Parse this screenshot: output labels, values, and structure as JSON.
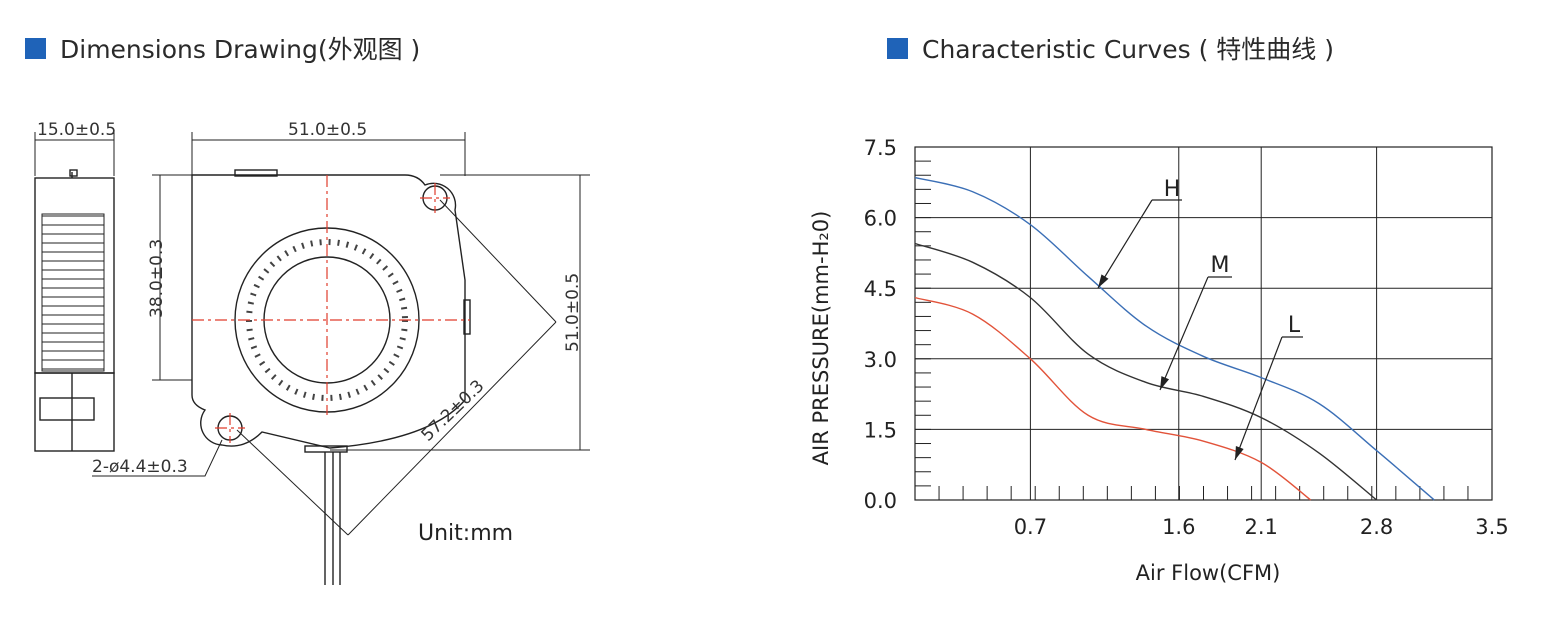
{
  "headers": {
    "left_title": "Dimensions Drawing(外观图 )",
    "right_title": "Characteristic Curves ( 特性曲线 )",
    "accent_color": "#1f63b8"
  },
  "drawing": {
    "dim_side_width": "15.0±0.5",
    "dim_top_width": "51.0±0.5",
    "dim_height": "38.0±0.3",
    "dim_right_height": "51.0±0.5",
    "dim_diagonal": "57.2±0.3",
    "dim_hole": "2-ø4.4±0.3",
    "unit_label": "Unit:mm",
    "centerline_color": "#e03c2c"
  },
  "chart_data": {
    "type": "line",
    "title": "",
    "xlabel": "Air Flow(CFM)",
    "ylabel": "AIR PRESSURE(mm-H₂0)",
    "x_ticks": [
      "0.7",
      "1.6",
      "2.1",
      "2.8",
      "3.5"
    ],
    "y_ticks": [
      "0.0",
      "1.5",
      "3.0",
      "4.5",
      "6.0",
      "7.5"
    ],
    "xlim": [
      0,
      3.5
    ],
    "ylim": [
      0,
      7.5
    ],
    "grid": true,
    "series": [
      {
        "name": "H",
        "color": "#3b6fb6",
        "points": [
          [
            0,
            6.85
          ],
          [
            0.35,
            6.55
          ],
          [
            0.7,
            5.85
          ],
          [
            1.05,
            4.75
          ],
          [
            1.4,
            3.7
          ],
          [
            1.75,
            3.05
          ],
          [
            2.1,
            2.6
          ],
          [
            2.45,
            2.05
          ],
          [
            2.8,
            1.05
          ],
          [
            3.15,
            0.0
          ]
        ]
      },
      {
        "name": "M",
        "color": "#333333",
        "points": [
          [
            0,
            5.45
          ],
          [
            0.35,
            5.05
          ],
          [
            0.7,
            4.3
          ],
          [
            1.05,
            3.1
          ],
          [
            1.4,
            2.5
          ],
          [
            1.75,
            2.2
          ],
          [
            2.1,
            1.75
          ],
          [
            2.45,
            1.0
          ],
          [
            2.8,
            0.0
          ]
        ]
      },
      {
        "name": "L",
        "color": "#e2533a",
        "points": [
          [
            0,
            4.3
          ],
          [
            0.35,
            3.95
          ],
          [
            0.7,
            3.0
          ],
          [
            1.05,
            1.8
          ],
          [
            1.4,
            1.5
          ],
          [
            1.75,
            1.25
          ],
          [
            2.1,
            0.8
          ],
          [
            2.4,
            0.0
          ]
        ]
      }
    ]
  }
}
